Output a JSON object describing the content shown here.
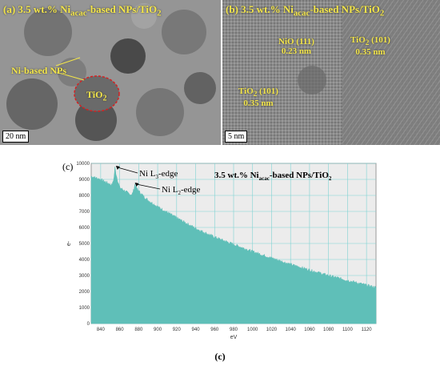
{
  "panel_a": {
    "label": "(a)",
    "title_pre": "3.5 wt.% Ni",
    "title_sub": "acac",
    "title_post": "-based NPs/TiO",
    "title_sub2": "2",
    "annot_ni": "Ni-based NPs",
    "annot_tio2_pre": "TiO",
    "annot_tio2_sub": "2",
    "scale_bar": "20 nm"
  },
  "panel_b": {
    "label": "(b)",
    "title_pre": "3.5 wt.% Ni",
    "title_sub": "acac",
    "title_post": "-based NPs/TiO",
    "title_sub2": "2",
    "nio_line1": "NiO (111)",
    "nio_line2": "0.23 nm",
    "tio2_a_line1_pre": "TiO",
    "tio2_a_line1_sub": "2",
    "tio2_a_line1_post": " (101)",
    "tio2_a_line2": "0.35 nm",
    "tio2_b_line1_pre": "TiO",
    "tio2_b_line1_sub": "2",
    "tio2_b_line1_post": " (101)",
    "tio2_b_line2": "0.35 nm",
    "scale_bar": "5 nm"
  },
  "figure_caption": "(c)",
  "chart_data": {
    "type": "area",
    "panel_label": "(c)",
    "title_pre": "3.5 wt.% Ni",
    "title_sub": "acac",
    "title_post": "-based NPs/TiO",
    "title_sub2": "2",
    "xlabel": "eV",
    "ylabel": "e-",
    "xlim": [
      830,
      1130
    ],
    "ylim": [
      0,
      10000
    ],
    "x_ticks": [
      840,
      860,
      880,
      900,
      920,
      940,
      960,
      980,
      1000,
      1020,
      1040,
      1060,
      1080,
      1100,
      1120
    ],
    "y_ticks": [
      0,
      1000,
      2000,
      3000,
      4000,
      5000,
      6000,
      7000,
      8000,
      9000,
      10000
    ],
    "grid": true,
    "fill_color": "#5fbfb8",
    "x": [
      830,
      840,
      850,
      852,
      854,
      855,
      856,
      858,
      860,
      865,
      870,
      873,
      875,
      876,
      877,
      879,
      882,
      886,
      890,
      900,
      920,
      940,
      960,
      980,
      1000,
      1020,
      1040,
      1060,
      1080,
      1100,
      1120,
      1130
    ],
    "y": [
      9200,
      9000,
      8700,
      8650,
      9100,
      9750,
      9400,
      8900,
      8500,
      8300,
      8100,
      8050,
      8400,
      8700,
      8550,
      8350,
      8150,
      7900,
      7700,
      7300,
      6600,
      5950,
      5400,
      4950,
      4500,
      4100,
      3700,
      3350,
      3000,
      2700,
      2400,
      2250
    ],
    "annotations": [
      {
        "pre": "Ni L",
        "sub": "3",
        "post": "-edge",
        "x": 856,
        "y": 9750
      },
      {
        "pre": "Ni L",
        "sub": "2",
        "post": "-edge",
        "x": 876,
        "y": 8700
      }
    ]
  }
}
